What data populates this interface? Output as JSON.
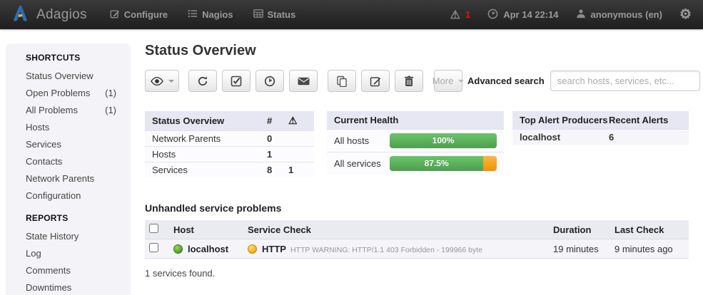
{
  "colors": {
    "brand_blue": "#2a6cb3",
    "logo_orange": "#f9a825",
    "alert_red": "#ee1100",
    "success_green": "#5bb75b",
    "warning_orange": "#f7a51b",
    "panel_header": "#e7e7f3"
  },
  "navbar": {
    "brand": "Adagios",
    "menu": [
      {
        "label": "Configure",
        "icon": "edit-icon"
      },
      {
        "label": "Nagios",
        "icon": "list-icon"
      },
      {
        "label": "Status",
        "icon": "table-icon"
      }
    ],
    "alerts_count": "1",
    "datetime": "Apr 14 22:14",
    "user": "anonymous (en)"
  },
  "sidebar": {
    "sections": [
      {
        "title": "SHORTCUTS",
        "items": [
          {
            "label": "Status Overview",
            "count": ""
          },
          {
            "label": "Open Problems",
            "count": "(1)"
          },
          {
            "label": "All Problems",
            "count": "(1)"
          },
          {
            "label": "Hosts",
            "count": ""
          },
          {
            "label": "Services",
            "count": ""
          },
          {
            "label": "Contacts",
            "count": ""
          },
          {
            "label": "Network Parents",
            "count": ""
          },
          {
            "label": "Configuration",
            "count": ""
          }
        ]
      },
      {
        "title": "REPORTS",
        "items": [
          {
            "label": "State History",
            "count": ""
          },
          {
            "label": "Log",
            "count": ""
          },
          {
            "label": "Comments",
            "count": ""
          },
          {
            "label": "Downtimes",
            "count": ""
          }
        ]
      }
    ]
  },
  "main": {
    "title": "Status Overview",
    "toolbar": {
      "buttons": [
        "eye-icon",
        "refresh-icon",
        "check-square-icon",
        "clock-icon",
        "mail-icon",
        "copy-icon",
        "edit-icon",
        "trash-icon"
      ],
      "more_label": "More"
    },
    "search": {
      "label": "Advanced search",
      "placeholder": "search hosts, services, etc..."
    },
    "status_table": {
      "title": "Status Overview",
      "count_col": "#",
      "rows": [
        {
          "label": "Network Parents",
          "count": "0",
          "warn": ""
        },
        {
          "label": "Hosts",
          "count": "1",
          "warn": ""
        },
        {
          "label": "Services",
          "count": "8",
          "warn": "1"
        }
      ]
    },
    "health": {
      "title": "Current Health",
      "rows": [
        {
          "label": "All hosts",
          "value": "100%",
          "pct": 100
        },
        {
          "label": "All services",
          "value": "87.5%",
          "pct": 87.5
        }
      ]
    },
    "alert_producers": {
      "col1": "Top Alert Producers",
      "col2": "Recent Alerts",
      "rows": [
        {
          "host": "localhost",
          "alerts": "6"
        }
      ]
    },
    "problems": {
      "title": "Unhandled service problems",
      "columns": {
        "host": "Host",
        "service": "Service Check",
        "duration": "Duration",
        "last_check": "Last Check"
      },
      "rows": [
        {
          "host": "localhost",
          "host_status": "up",
          "service": "HTTP",
          "service_status": "warning",
          "detail": "HTTP WARNING: HTTP/1.1 403 Forbidden - 199966 byte",
          "duration": "19 minutes",
          "last_check": "9 minutes ago"
        }
      ],
      "footer": "1 services found."
    }
  }
}
